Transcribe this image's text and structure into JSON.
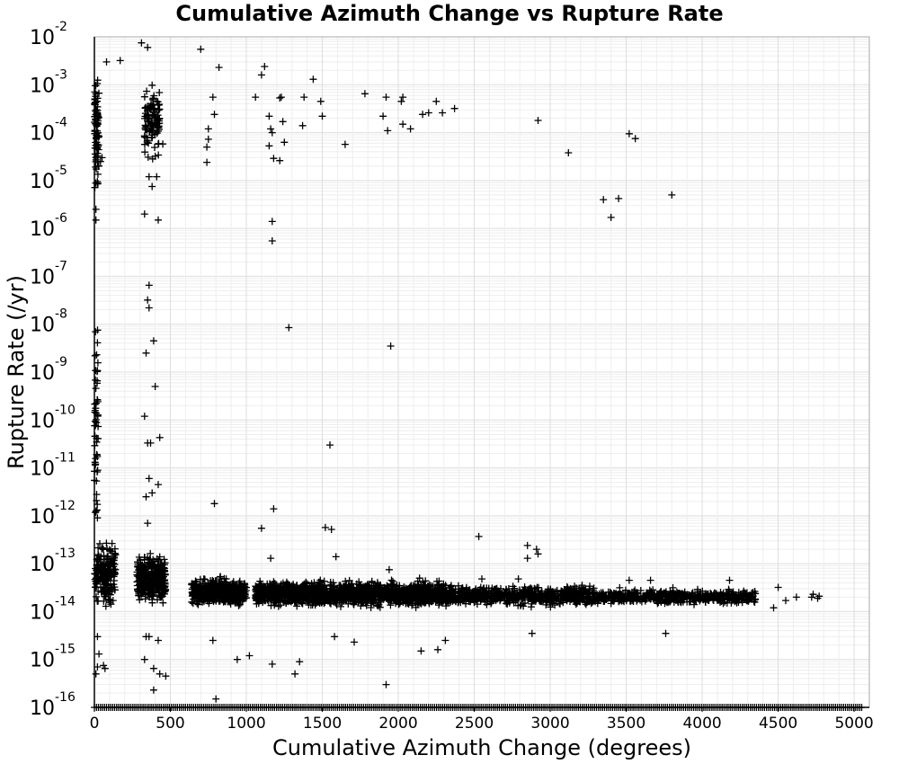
{
  "chart_data": {
    "type": "scatter",
    "title": "Cumulative Azimuth Change vs Rupture Rate",
    "xlabel": "Cumulative Azimuth Change (degrees)",
    "ylabel": "Rupture Rate (/yr)",
    "xlim": [
      0,
      5100
    ],
    "ylim": [
      1e-16,
      0.01
    ],
    "yscale": "log",
    "grid": true,
    "legend": "none",
    "marker": "+",
    "color": "#000000",
    "x_ticks": [
      "0",
      "500",
      "1000",
      "1500",
      "2000",
      "2500",
      "3000",
      "3500",
      "4000",
      "4500",
      "5000"
    ],
    "y_ticks": [
      {
        "base": "10",
        "exp": "-16"
      },
      {
        "base": "10",
        "exp": "-15"
      },
      {
        "base": "10",
        "exp": "-14"
      },
      {
        "base": "10",
        "exp": "-13"
      },
      {
        "base": "10",
        "exp": "-12"
      },
      {
        "base": "10",
        "exp": "-11"
      },
      {
        "base": "10",
        "exp": "-10"
      },
      {
        "base": "10",
        "exp": "-9"
      },
      {
        "base": "10",
        "exp": "-8"
      },
      {
        "base": "10",
        "exp": "-7"
      },
      {
        "base": "10",
        "exp": "-6"
      },
      {
        "base": "10",
        "exp": "-5"
      },
      {
        "base": "10",
        "exp": "-4"
      },
      {
        "base": "10",
        "exp": "-3"
      },
      {
        "base": "10",
        "exp": "-2"
      }
    ],
    "points": [
      [
        310,
        0.0075
      ],
      [
        350,
        0.006
      ],
      [
        700,
        0.0055
      ],
      [
        80,
        0.003
      ],
      [
        170,
        0.0032
      ],
      [
        820,
        0.0023
      ],
      [
        1120,
        0.0024
      ],
      [
        1100,
        0.0016
      ],
      [
        1440,
        0.0013
      ],
      [
        1780,
        0.00065
      ],
      [
        1920,
        0.00055
      ],
      [
        2020,
        0.00045
      ],
      [
        2030,
        0.00055
      ],
      [
        1060,
        0.00055
      ],
      [
        1230,
        0.00055
      ],
      [
        1220,
        0.00053
      ],
      [
        780,
        0.00055
      ],
      [
        1380,
        0.00055
      ],
      [
        1490,
        0.00045
      ],
      [
        2250,
        0.00045
      ],
      [
        2370,
        0.00032
      ],
      [
        2290,
        0.00026
      ],
      [
        2160,
        0.00024
      ],
      [
        2200,
        0.00026
      ],
      [
        1150,
        0.00022
      ],
      [
        1500,
        0.00022
      ],
      [
        1900,
        0.00022
      ],
      [
        790,
        0.00024
      ],
      [
        2920,
        0.00018
      ],
      [
        1240,
        0.00017
      ],
      [
        1370,
        0.00014
      ],
      [
        2030,
        0.00015
      ],
      [
        2080,
        0.00012
      ],
      [
        1930,
        0.00011
      ],
      [
        1160,
        0.00012
      ],
      [
        1170,
        0.0001
      ],
      [
        750,
        0.00012
      ],
      [
        3520,
        9.5e-05
      ],
      [
        3560,
        7.5e-05
      ],
      [
        1650,
        5.7e-05
      ],
      [
        750,
        7.3e-05
      ],
      [
        1150,
        5.3e-05
      ],
      [
        1250,
        6.3e-05
      ],
      [
        740,
        5e-05
      ],
      [
        3120,
        3.8e-05
      ],
      [
        1180,
        2.9e-05
      ],
      [
        1220,
        2.6e-05
      ],
      [
        740,
        2.4e-05
      ],
      [
        3800,
        5e-06
      ],
      [
        3350,
        4e-06
      ],
      [
        3450,
        4.2e-06
      ],
      [
        3400,
        1.7e-06
      ],
      [
        1170,
        1.4e-06
      ],
      [
        1170,
        5.5e-07
      ],
      [
        1280,
        8.5e-09
      ],
      [
        1950,
        3.5e-09
      ],
      [
        1550,
        3e-11
      ],
      [
        790,
        1.8e-12
      ],
      [
        1100,
        5.5e-13
      ],
      [
        1180,
        1.4e-12
      ],
      [
        1520,
        5.7e-13
      ],
      [
        1560,
        5.2e-13
      ],
      [
        2530,
        3.7e-13
      ],
      [
        2850,
        2.4e-13
      ],
      [
        2910,
        2e-13
      ],
      [
        2850,
        1.3e-13
      ],
      [
        2920,
        1.6e-13
      ],
      [
        1590,
        1.4e-13
      ],
      [
        1940,
        7.5e-14
      ],
      [
        1160,
        1.3e-13
      ],
      [
        2140,
        5e-14
      ],
      [
        2550,
        4.8e-14
      ],
      [
        2790,
        4.8e-14
      ],
      [
        3520,
        4.5e-14
      ],
      [
        3660,
        4.5e-14
      ],
      [
        4180,
        4.5e-14
      ],
      [
        4500,
        3.2e-14
      ],
      [
        4720,
        2e-14
      ],
      [
        4770,
        2.1e-14
      ],
      [
        4730,
        2.3e-14
      ],
      [
        4760,
        1.9e-14
      ],
      [
        4620,
        2e-14
      ],
      [
        4550,
        1.7e-14
      ],
      [
        4470,
        1.2e-14
      ],
      [
        3760,
        3.5e-15
      ],
      [
        2880,
        3.5e-15
      ],
      [
        2310,
        2.5e-15
      ],
      [
        2260,
        1.6e-15
      ],
      [
        2150,
        1.5e-15
      ],
      [
        1710,
        2.3e-15
      ],
      [
        1580,
        3e-15
      ],
      [
        1170,
        8e-16
      ],
      [
        1350,
        9e-16
      ],
      [
        1320,
        5e-16
      ],
      [
        1020,
        1.2e-15
      ],
      [
        940,
        1e-15
      ],
      [
        780,
        2.5e-15
      ],
      [
        1920,
        3e-16
      ],
      [
        800,
        1.5e-16
      ],
      [
        360,
        6.5e-08
      ],
      [
        350,
        3.2e-08
      ],
      [
        360,
        2.2e-08
      ],
      [
        390,
        4.5e-09
      ],
      [
        340,
        2.5e-09
      ],
      [
        400,
        5e-10
      ],
      [
        330,
        1.2e-10
      ],
      [
        350,
        3.3e-11
      ],
      [
        370,
        3.3e-11
      ],
      [
        430,
        4.3e-11
      ],
      [
        360,
        6e-12
      ],
      [
        380,
        3e-12
      ],
      [
        420,
        4.5e-12
      ],
      [
        340,
        2.5e-12
      ],
      [
        350,
        7e-13
      ],
      [
        340,
        3e-15
      ],
      [
        360,
        3e-15
      ],
      [
        420,
        2.5e-15
      ],
      [
        330,
        1e-15
      ],
      [
        430,
        5e-16
      ],
      [
        470,
        4.5e-16
      ],
      [
        390,
        6.5e-16
      ],
      [
        390,
        2.3e-16
      ],
      [
        20,
        7e-16
      ],
      [
        70,
        6.5e-16
      ],
      [
        20,
        3e-15
      ],
      [
        30,
        1.3e-15
      ],
      [
        60,
        7.5e-16
      ],
      [
        10,
        5e-16
      ],
      [
        410,
        1.2e-05
      ],
      [
        380,
        7.5e-06
      ],
      [
        330,
        2e-06
      ],
      [
        420,
        1.5e-06
      ],
      [
        400,
        3.2e-05
      ],
      [
        450,
        5.8e-05
      ],
      [
        360,
        1.2e-05
      ],
      [
        50,
        3e-05
      ],
      [
        40,
        2.5e-05
      ],
      [
        20,
        8.5e-06
      ],
      [
        10,
        2.5e-06
      ],
      [
        10,
        1.5e-06
      ]
    ],
    "clusters": [
      {
        "x": [
          0,
          30
        ],
        "ymin": 3e-06,
        "ymax": 0.003,
        "n": 90
      },
      {
        "x": [
          0,
          25
        ],
        "ymin": 1e-13,
        "ymax": 1e-07,
        "n": 55
      },
      {
        "x": [
          330,
          430
        ],
        "ymin": 2e-05,
        "ymax": 0.0015,
        "n": 110
      },
      {
        "x": [
          0,
          140
        ],
        "ymin": 1e-14,
        "ymax": 4e-13,
        "n": 200
      },
      {
        "x": [
          280,
          470
        ],
        "ymin": 1e-14,
        "ymax": 2e-13,
        "n": 340
      },
      {
        "x": [
          640,
          1000
        ],
        "ymin": 1.1e-14,
        "ymax": 6e-14,
        "n": 500
      },
      {
        "x": [
          1060,
          2300
        ],
        "ymin": 1.1e-14,
        "ymax": 5e-14,
        "n": 1500
      },
      {
        "x": [
          2300,
          3300
        ],
        "ymin": 1.2e-14,
        "ymax": 3.8e-14,
        "n": 700
      },
      {
        "x": [
          3300,
          4350
        ],
        "ymin": 1.3e-14,
        "ymax": 3.2e-14,
        "n": 520
      }
    ],
    "floor": {
      "x": [
        0,
        5050
      ],
      "y": 1e-16,
      "n": 380
    }
  }
}
